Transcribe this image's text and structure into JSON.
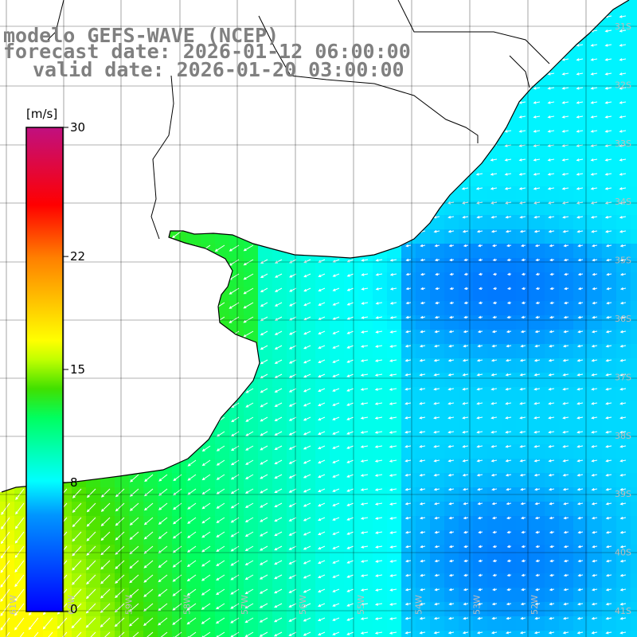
{
  "titles": {
    "line1": "modelo GEFS-WAVE (NCEP)",
    "line2": "forecast date: 2026-01-12 06:00:00",
    "line3": "valid date: 2026-01-20 03:00:00"
  },
  "colorbar": {
    "units": "[m/s]",
    "min": 0,
    "max": 30,
    "ticks": [
      "30",
      "22",
      "15",
      "8",
      "0"
    ],
    "tick_values": [
      30,
      22,
      15,
      8,
      0
    ],
    "stops": [
      "#0000ff",
      "#00ffff",
      "#00ff00",
      "#ffff00",
      "#ff0000",
      "#c00090"
    ]
  },
  "map": {
    "field": "wind speed",
    "vector_direction": "towards southwest/west",
    "lat_labels": [
      "31S",
      "32S",
      "33S",
      "34S",
      "35S",
      "36S",
      "37S",
      "38S",
      "39S",
      "40S",
      "41S"
    ],
    "lon_labels": [
      "61W",
      "60W",
      "59W",
      "58W",
      "57W",
      "56W",
      "55W",
      "54W",
      "53W",
      "52W"
    ],
    "land_color": "#ffffff",
    "grid_color": "#000000",
    "coast_color": "#000000"
  }
}
